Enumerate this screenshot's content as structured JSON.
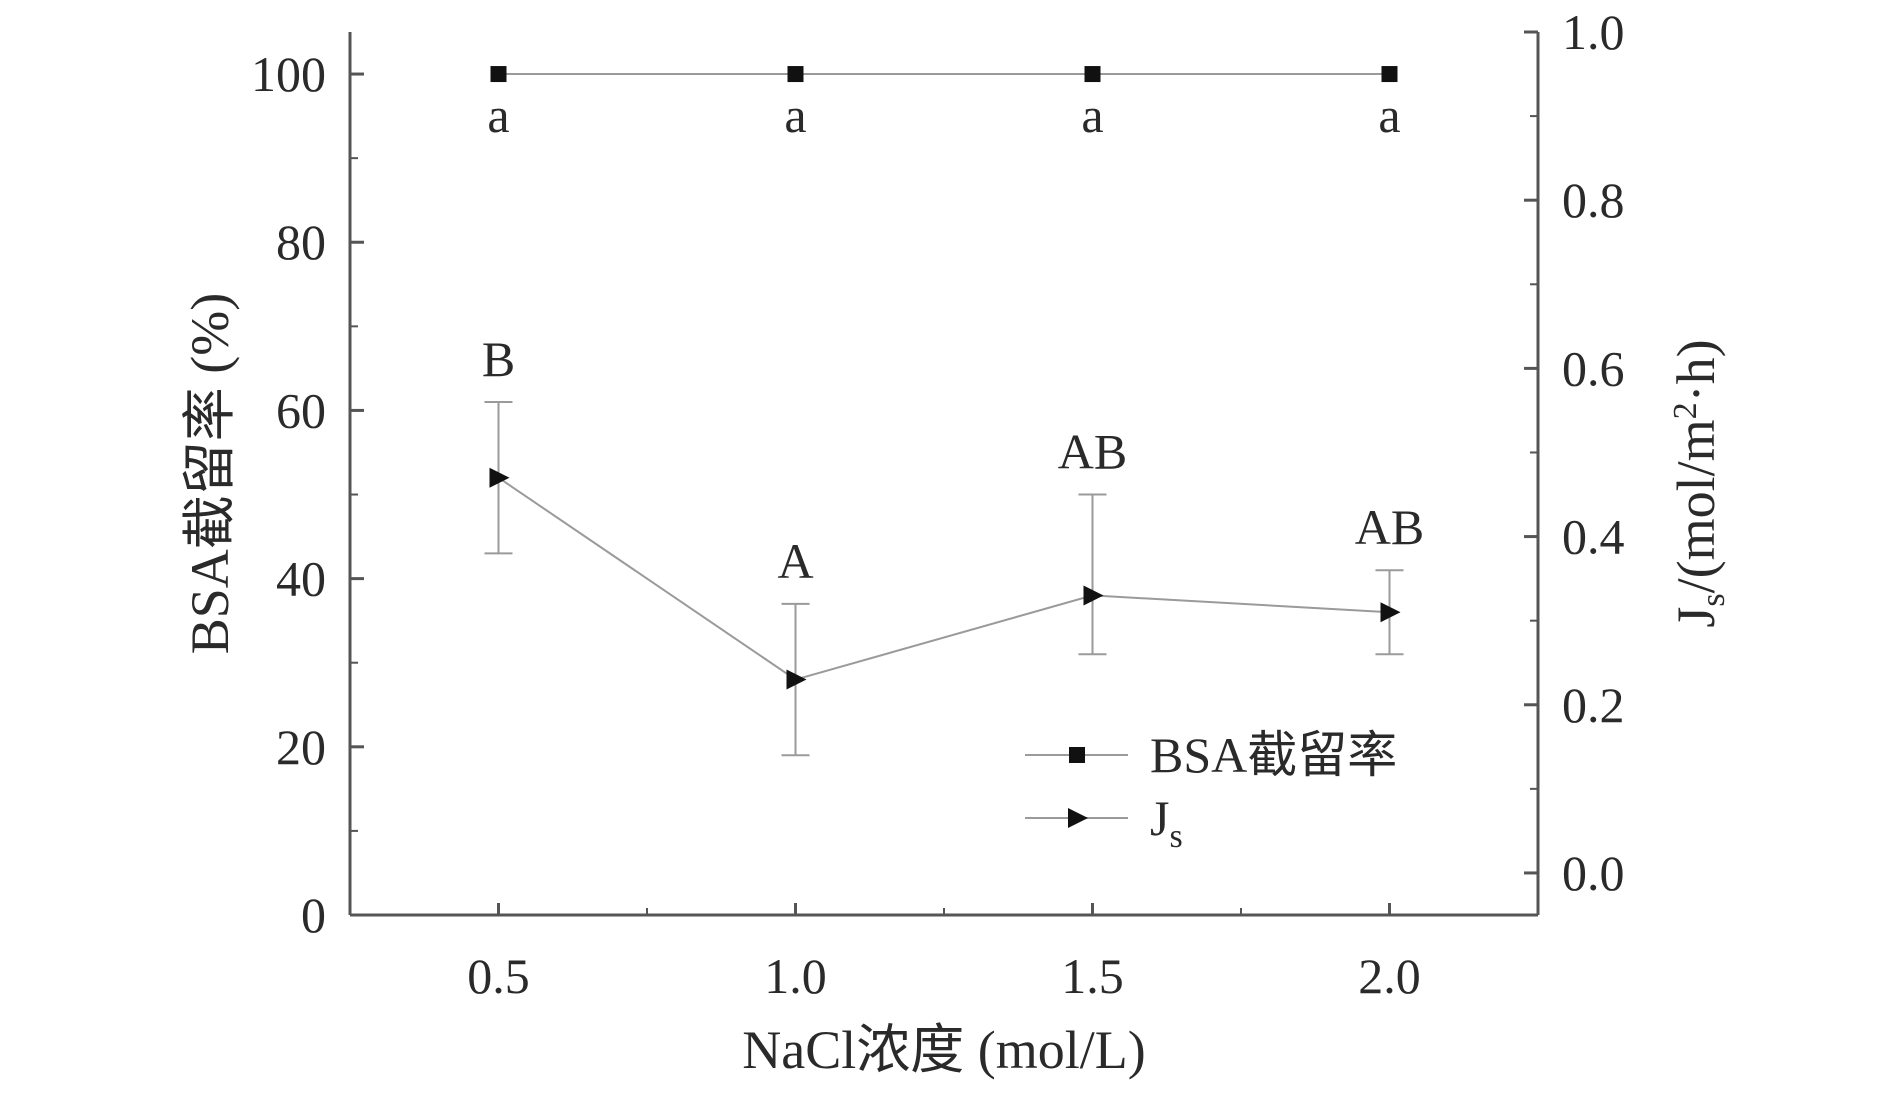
{
  "chart_data": {
    "type": "line",
    "x": [
      0.5,
      1.0,
      1.5,
      2.0
    ],
    "xlabel": "NaCl浓度 (mol/L)",
    "x_ticks": [
      "0.5",
      "1.0",
      "1.5",
      "2.0"
    ],
    "xlim": [
      0.25,
      2.25
    ],
    "y_left": {
      "label": "BSA截留率 (%)",
      "lim": [
        0,
        105
      ],
      "ticks": [
        "0",
        "20",
        "40",
        "60",
        "80",
        "100"
      ]
    },
    "y_right": {
      "label_main": "J",
      "label_sub": "s",
      "label_rest": "/(mol/m",
      "label_sup": "2",
      "label_tail": "·h)",
      "lim": [
        -0.05,
        1.0
      ],
      "ticks": [
        "0.0",
        "0.2",
        "0.4",
        "0.6",
        "0.8",
        "1.0"
      ]
    },
    "series": [
      {
        "name": "BSA截留率",
        "axis": "left",
        "marker": "square",
        "values": [
          100,
          100,
          100,
          100
        ],
        "labels": [
          "a",
          "a",
          "a",
          "a"
        ]
      },
      {
        "name": "J",
        "name_sub": "s",
        "axis": "right",
        "marker": "triangle-right",
        "values": [
          0.47,
          0.23,
          0.33,
          0.31
        ],
        "error_low": [
          0.38,
          0.14,
          0.26,
          0.26
        ],
        "error_high": [
          0.56,
          0.32,
          0.45,
          0.36
        ],
        "labels": [
          "B",
          "A",
          "AB",
          "AB"
        ]
      }
    ],
    "legend": "bottom-right",
    "grid": false
  }
}
